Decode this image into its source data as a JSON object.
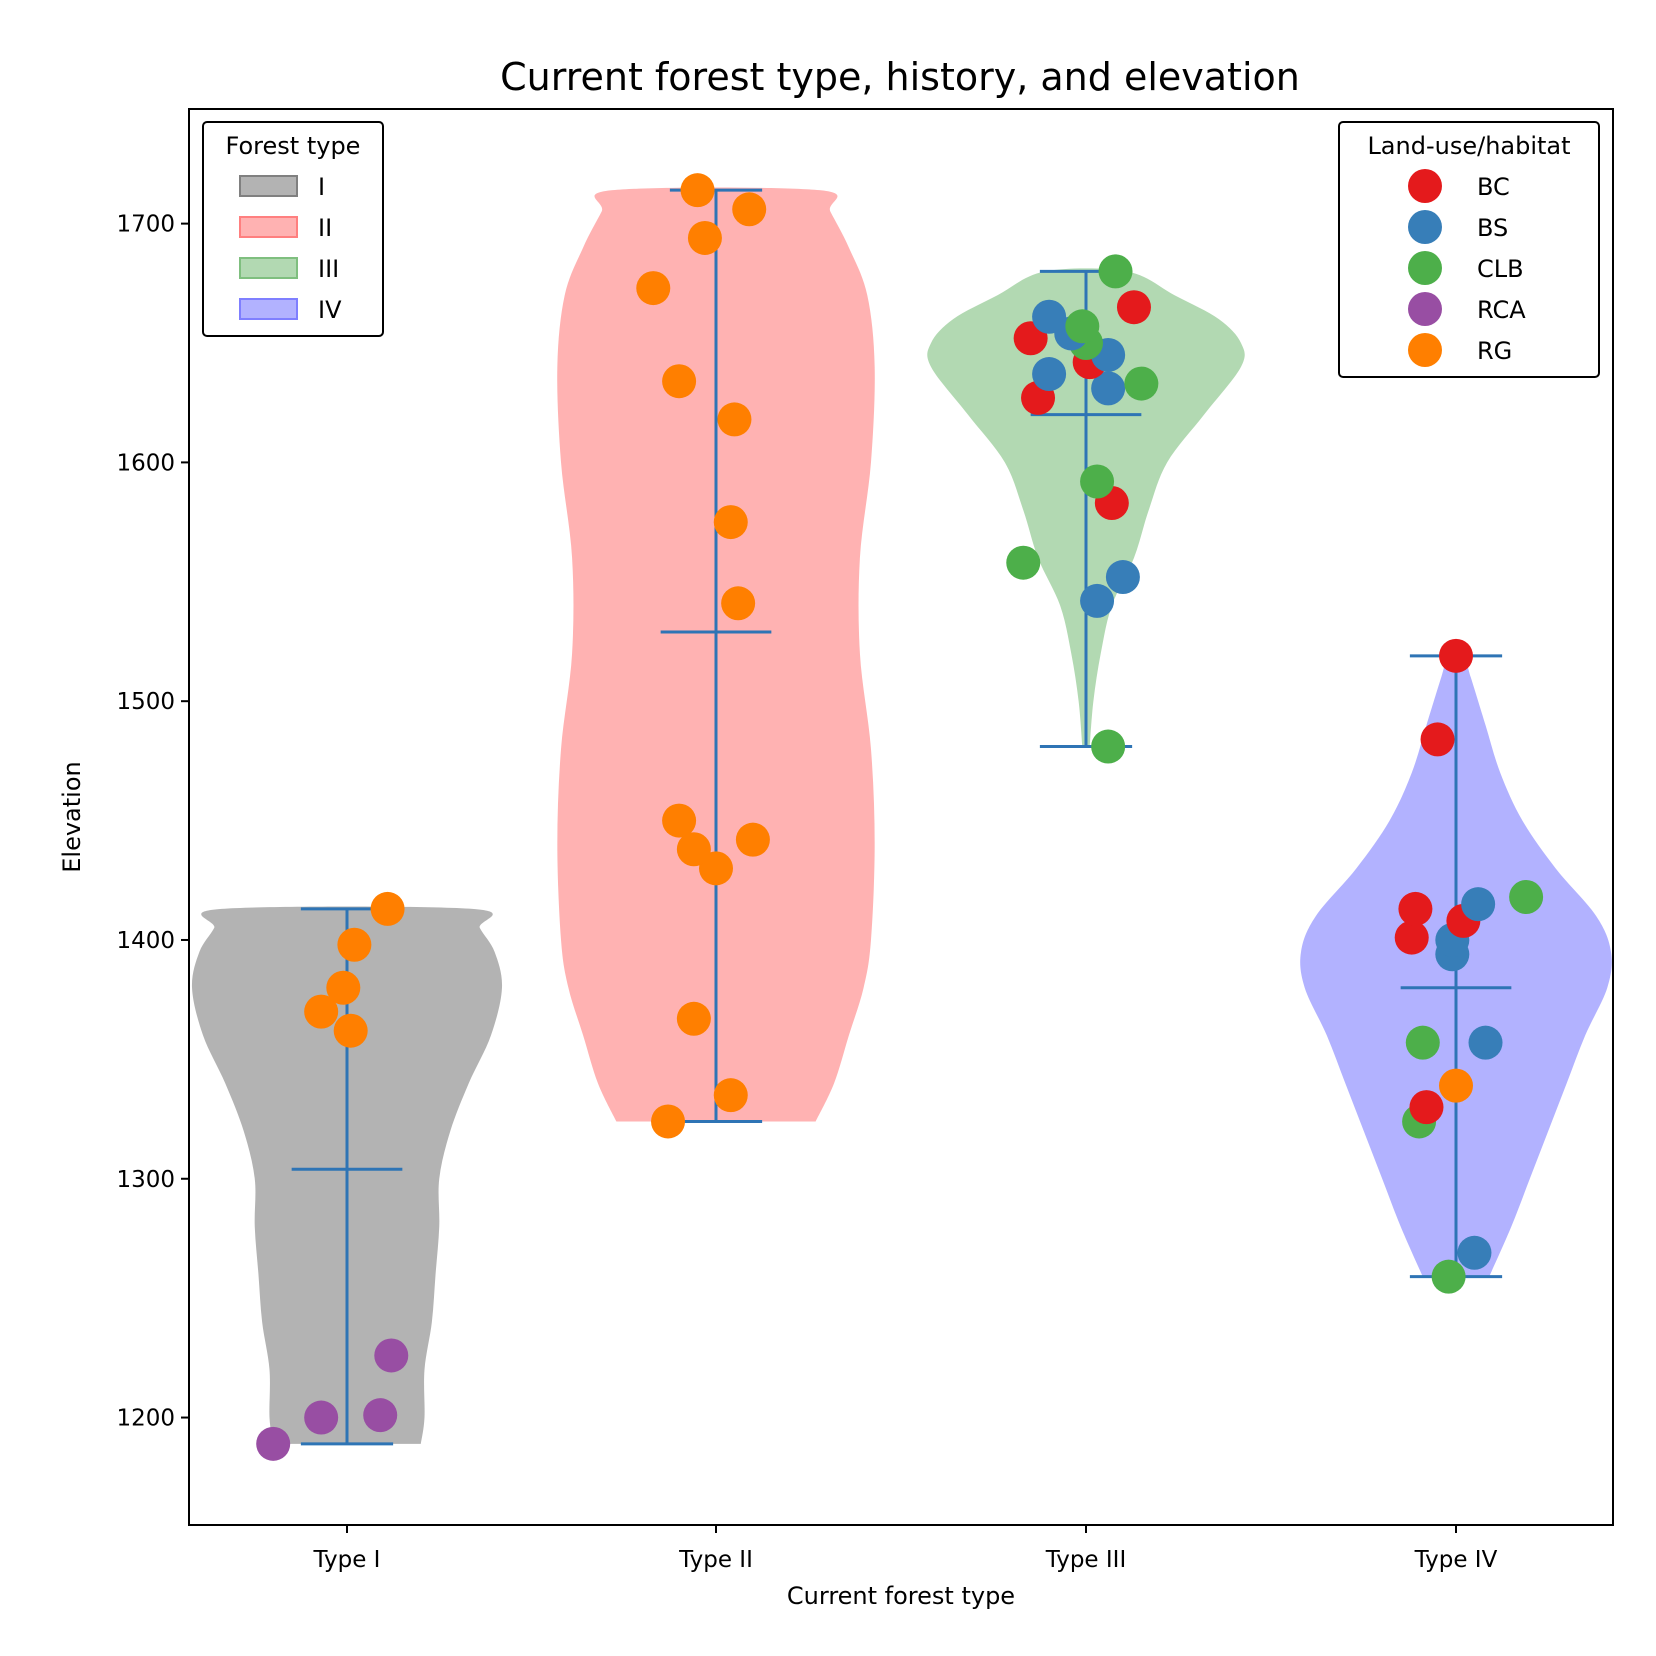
{
  "chart_data": {
    "type": "violin",
    "title": "Current forest type, history, and elevation",
    "xlabel": "Current forest type",
    "ylabel": "Elevation",
    "ylim": [
      1155,
      1748
    ],
    "yticks": [
      1200,
      1300,
      1400,
      1500,
      1600,
      1700
    ],
    "categories": [
      "Type I",
      "Type II",
      "Type III",
      "Type IV"
    ],
    "forest_legend": {
      "title": "Forest type",
      "placement": "top-left",
      "items": [
        {
          "label": "I",
          "color": "#808080"
        },
        {
          "label": "II",
          "color": "#ff7f7f"
        },
        {
          "label": "III",
          "color": "#7fbf7f"
        },
        {
          "label": "IV",
          "color": "#7f7fff"
        }
      ]
    },
    "habitat_legend": {
      "title": "Land-use/habitat",
      "placement": "top-right",
      "items": [
        {
          "label": "BC",
          "color": "#e41a1c"
        },
        {
          "label": "BS",
          "color": "#377eb8"
        },
        {
          "label": "CLB",
          "color": "#4daf4a"
        },
        {
          "label": "RCA",
          "color": "#984ea3"
        },
        {
          "label": "RG",
          "color": "#ff7f00"
        }
      ]
    },
    "marker_line_color": "#2e74b5",
    "violins": [
      {
        "category": "Type I",
        "min": 1189,
        "max": 1413,
        "mean": 1304,
        "profile": [
          [
            1189,
            0.2
          ],
          [
            1200,
            0.21
          ],
          [
            1220,
            0.21
          ],
          [
            1240,
            0.23
          ],
          [
            1260,
            0.24
          ],
          [
            1280,
            0.25
          ],
          [
            1300,
            0.25
          ],
          [
            1320,
            0.28
          ],
          [
            1340,
            0.33
          ],
          [
            1360,
            0.39
          ],
          [
            1380,
            0.42
          ],
          [
            1395,
            0.4
          ],
          [
            1405,
            0.36
          ],
          [
            1413,
            0.34
          ]
        ]
      },
      {
        "category": "Type II",
        "min": 1324,
        "max": 1714,
        "mean": 1529,
        "profile": [
          [
            1324,
            0.27
          ],
          [
            1340,
            0.32
          ],
          [
            1360,
            0.36
          ],
          [
            1380,
            0.4
          ],
          [
            1400,
            0.42
          ],
          [
            1440,
            0.43
          ],
          [
            1480,
            0.42
          ],
          [
            1520,
            0.39
          ],
          [
            1560,
            0.39
          ],
          [
            1600,
            0.42
          ],
          [
            1640,
            0.43
          ],
          [
            1670,
            0.41
          ],
          [
            1690,
            0.36
          ],
          [
            1705,
            0.31
          ],
          [
            1714,
            0.28
          ]
        ]
      },
      {
        "category": "Type III",
        "min": 1481,
        "max": 1680,
        "mean": 1620,
        "profile": [
          [
            1481,
            0.01
          ],
          [
            1500,
            0.02
          ],
          [
            1520,
            0.04
          ],
          [
            1540,
            0.07
          ],
          [
            1560,
            0.13
          ],
          [
            1580,
            0.17
          ],
          [
            1600,
            0.22
          ],
          [
            1620,
            0.32
          ],
          [
            1640,
            0.42
          ],
          [
            1650,
            0.42
          ],
          [
            1660,
            0.36
          ],
          [
            1670,
            0.24
          ],
          [
            1680,
            0.11
          ]
        ]
      },
      {
        "category": "Type IV",
        "min": 1259,
        "max": 1519,
        "mean": 1380,
        "profile": [
          [
            1259,
            0.09
          ],
          [
            1280,
            0.15
          ],
          [
            1300,
            0.2
          ],
          [
            1320,
            0.25
          ],
          [
            1340,
            0.3
          ],
          [
            1360,
            0.35
          ],
          [
            1380,
            0.41
          ],
          [
            1395,
            0.42
          ],
          [
            1410,
            0.38
          ],
          [
            1430,
            0.27
          ],
          [
            1450,
            0.18
          ],
          [
            1470,
            0.12
          ],
          [
            1490,
            0.08
          ],
          [
            1510,
            0.04
          ],
          [
            1519,
            0.02
          ]
        ]
      }
    ],
    "points": [
      {
        "category": "Type I",
        "jitter": -0.2,
        "y": 1189,
        "habitat": "RCA"
      },
      {
        "category": "Type I",
        "jitter": -0.07,
        "y": 1200,
        "habitat": "RCA"
      },
      {
        "category": "Type I",
        "jitter": 0.09,
        "y": 1201,
        "habitat": "RCA"
      },
      {
        "category": "Type I",
        "jitter": 0.12,
        "y": 1226,
        "habitat": "RCA"
      },
      {
        "category": "Type I",
        "jitter": 0.01,
        "y": 1362,
        "habitat": "RG"
      },
      {
        "category": "Type I",
        "jitter": -0.07,
        "y": 1370,
        "habitat": "RG"
      },
      {
        "category": "Type I",
        "jitter": -0.01,
        "y": 1380,
        "habitat": "RG"
      },
      {
        "category": "Type I",
        "jitter": 0.02,
        "y": 1398,
        "habitat": "RG"
      },
      {
        "category": "Type I",
        "jitter": 0.11,
        "y": 1413,
        "habitat": "RG"
      },
      {
        "category": "Type II",
        "jitter": -0.13,
        "y": 1324,
        "habitat": "RG"
      },
      {
        "category": "Type II",
        "jitter": 0.04,
        "y": 1335,
        "habitat": "RG"
      },
      {
        "category": "Type II",
        "jitter": -0.06,
        "y": 1367,
        "habitat": "RG"
      },
      {
        "category": "Type II",
        "jitter": 0.0,
        "y": 1430,
        "habitat": "RG"
      },
      {
        "category": "Type II",
        "jitter": -0.06,
        "y": 1438,
        "habitat": "RG"
      },
      {
        "category": "Type II",
        "jitter": 0.1,
        "y": 1442,
        "habitat": "RG"
      },
      {
        "category": "Type II",
        "jitter": -0.1,
        "y": 1450,
        "habitat": "RG"
      },
      {
        "category": "Type II",
        "jitter": 0.06,
        "y": 1541,
        "habitat": "RG"
      },
      {
        "category": "Type II",
        "jitter": 0.04,
        "y": 1575,
        "habitat": "RG"
      },
      {
        "category": "Type II",
        "jitter": 0.05,
        "y": 1618,
        "habitat": "RG"
      },
      {
        "category": "Type II",
        "jitter": -0.1,
        "y": 1634,
        "habitat": "RG"
      },
      {
        "category": "Type II",
        "jitter": -0.17,
        "y": 1673,
        "habitat": "RG"
      },
      {
        "category": "Type II",
        "jitter": -0.03,
        "y": 1694,
        "habitat": "RG"
      },
      {
        "category": "Type II",
        "jitter": 0.09,
        "y": 1706,
        "habitat": "RG"
      },
      {
        "category": "Type II",
        "jitter": -0.05,
        "y": 1714,
        "habitat": "RG"
      },
      {
        "category": "Type III",
        "jitter": 0.06,
        "y": 1481,
        "habitat": "CLB"
      },
      {
        "category": "Type III",
        "jitter": -0.17,
        "y": 1558,
        "habitat": "CLB"
      },
      {
        "category": "Type III",
        "jitter": 0.03,
        "y": 1542,
        "habitat": "BS"
      },
      {
        "category": "Type III",
        "jitter": 0.1,
        "y": 1552,
        "habitat": "BS"
      },
      {
        "category": "Type III",
        "jitter": 0.07,
        "y": 1583,
        "habitat": "BC"
      },
      {
        "category": "Type III",
        "jitter": 0.03,
        "y": 1592,
        "habitat": "CLB"
      },
      {
        "category": "Type III",
        "jitter": -0.13,
        "y": 1627,
        "habitat": "BC"
      },
      {
        "category": "Type III",
        "jitter": 0.06,
        "y": 1631,
        "habitat": "BS"
      },
      {
        "category": "Type III",
        "jitter": 0.15,
        "y": 1633,
        "habitat": "CLB"
      },
      {
        "category": "Type III",
        "jitter": -0.1,
        "y": 1637,
        "habitat": "BS"
      },
      {
        "category": "Type III",
        "jitter": 0.01,
        "y": 1642,
        "habitat": "BC"
      },
      {
        "category": "Type III",
        "jitter": 0.06,
        "y": 1645,
        "habitat": "BS"
      },
      {
        "category": "Type III",
        "jitter": 0.0,
        "y": 1650,
        "habitat": "CLB"
      },
      {
        "category": "Type III",
        "jitter": -0.15,
        "y": 1652,
        "habitat": "BC"
      },
      {
        "category": "Type III",
        "jitter": -0.04,
        "y": 1654,
        "habitat": "BS"
      },
      {
        "category": "Type III",
        "jitter": -0.01,
        "y": 1657,
        "habitat": "CLB"
      },
      {
        "category": "Type III",
        "jitter": -0.1,
        "y": 1661,
        "habitat": "BS"
      },
      {
        "category": "Type III",
        "jitter": 0.13,
        "y": 1665,
        "habitat": "BC"
      },
      {
        "category": "Type III",
        "jitter": 0.08,
        "y": 1680,
        "habitat": "CLB"
      },
      {
        "category": "Type IV",
        "jitter": -0.02,
        "y": 1259,
        "habitat": "CLB"
      },
      {
        "category": "Type IV",
        "jitter": 0.05,
        "y": 1269,
        "habitat": "BS"
      },
      {
        "category": "Type IV",
        "jitter": -0.1,
        "y": 1324,
        "habitat": "CLB"
      },
      {
        "category": "Type IV",
        "jitter": -0.08,
        "y": 1330,
        "habitat": "BC"
      },
      {
        "category": "Type IV",
        "jitter": 0.0,
        "y": 1339,
        "habitat": "RG"
      },
      {
        "category": "Type IV",
        "jitter": -0.09,
        "y": 1357,
        "habitat": "CLB"
      },
      {
        "category": "Type IV",
        "jitter": 0.08,
        "y": 1357,
        "habitat": "BS"
      },
      {
        "category": "Type IV",
        "jitter": -0.01,
        "y": 1394,
        "habitat": "BS"
      },
      {
        "category": "Type IV",
        "jitter": -0.01,
        "y": 1400,
        "habitat": "BS"
      },
      {
        "category": "Type IV",
        "jitter": -0.12,
        "y": 1401,
        "habitat": "BC"
      },
      {
        "category": "Type IV",
        "jitter": 0.02,
        "y": 1408,
        "habitat": "BC"
      },
      {
        "category": "Type IV",
        "jitter": -0.11,
        "y": 1413,
        "habitat": "BC"
      },
      {
        "category": "Type IV",
        "jitter": 0.06,
        "y": 1415,
        "habitat": "BS"
      },
      {
        "category": "Type IV",
        "jitter": 0.19,
        "y": 1418,
        "habitat": "CLB"
      },
      {
        "category": "Type IV",
        "jitter": -0.05,
        "y": 1484,
        "habitat": "BC"
      },
      {
        "category": "Type IV",
        "jitter": 0.0,
        "y": 1519,
        "habitat": "BC"
      }
    ]
  }
}
